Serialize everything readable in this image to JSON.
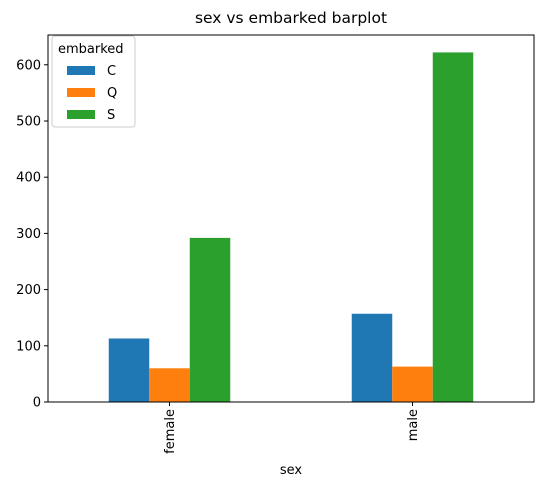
{
  "chart_data": {
    "type": "bar",
    "title": "sex vs embarked barplot",
    "xlabel": "sex",
    "ylabel": "",
    "categories": [
      "female",
      "male"
    ],
    "series": [
      {
        "name": "C",
        "values": [
          113,
          157
        ],
        "color": "#1f77b4"
      },
      {
        "name": "Q",
        "values": [
          60,
          63
        ],
        "color": "#ff7f0e"
      },
      {
        "name": "S",
        "values": [
          292,
          622
        ],
        "color": "#2ca02c"
      }
    ],
    "ylim": [
      0,
      653
    ],
    "yticks": [
      0,
      100,
      200,
      300,
      400,
      500,
      600
    ],
    "legend": {
      "title": "embarked",
      "position": "top-left"
    },
    "grid": false
  }
}
